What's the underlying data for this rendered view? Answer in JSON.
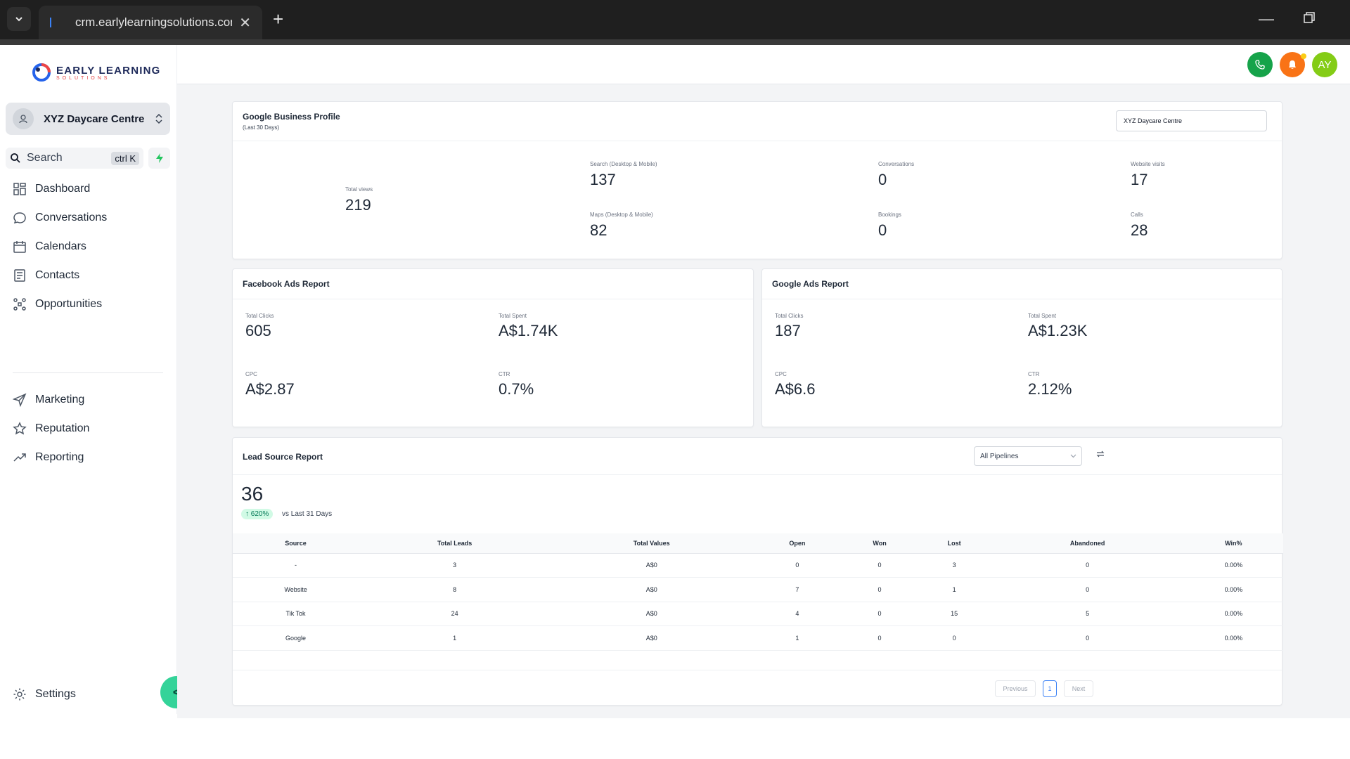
{
  "browser": {
    "tab_title": "crm.earlylearningsolutions.com",
    "close_glyph": "✕",
    "new_tab_glyph": "+",
    "minimize_glyph": "—"
  },
  "sidebar": {
    "logo_main": "EARLY LEARNING",
    "logo_sub": "SOLUTIONS",
    "location_name": "XYZ Daycare Centre",
    "search_label": "Search",
    "search_shortcut": "ctrl K",
    "nav_primary": [
      {
        "label": "Dashboard",
        "icon": "dashboard-icon"
      },
      {
        "label": "Conversations",
        "icon": "chat-bubble-icon"
      },
      {
        "label": "Calendars",
        "icon": "calendar-icon"
      },
      {
        "label": "Contacts",
        "icon": "contacts-icon"
      },
      {
        "label": "Opportunities",
        "icon": "opportunities-icon"
      }
    ],
    "nav_secondary": [
      {
        "label": "Marketing",
        "icon": "send-icon"
      },
      {
        "label": "Reputation",
        "icon": "star-icon"
      },
      {
        "label": "Reporting",
        "icon": "trend-icon"
      }
    ],
    "settings_label": "Settings",
    "collapse_glyph": "<"
  },
  "header": {
    "avatar_initials": "AY",
    "colors": {
      "phone": "#16a34a",
      "bell": "#f97316",
      "avatar": "#84cc16"
    }
  },
  "gbp": {
    "title": "Google Business Profile",
    "subtitle": "(Last 30 Days)",
    "location_select": "XYZ Daycare Centre",
    "total_views_label": "Total views",
    "total_views": "219",
    "stats": [
      {
        "label": "Search (Desktop & Mobile)",
        "value": "137"
      },
      {
        "label": "Maps (Desktop & Mobile)",
        "value": "82"
      },
      {
        "label": "Conversations",
        "value": "0"
      },
      {
        "label": "Bookings",
        "value": "0"
      },
      {
        "label": "Website visits",
        "value": "17"
      },
      {
        "label": "Calls",
        "value": "28"
      }
    ]
  },
  "facebook_ads": {
    "title": "Facebook Ads Report",
    "stats": [
      {
        "label": "Total Clicks",
        "value": "605"
      },
      {
        "label": "Total Spent",
        "value": "A$1.74K"
      },
      {
        "label": "CPC",
        "value": "A$2.87"
      },
      {
        "label": "CTR",
        "value": "0.7%"
      }
    ]
  },
  "google_ads": {
    "title": "Google Ads Report",
    "stats": [
      {
        "label": "Total Clicks",
        "value": "187"
      },
      {
        "label": "Total Spent",
        "value": "A$1.23K"
      },
      {
        "label": "CPC",
        "value": "A$6.6"
      },
      {
        "label": "CTR",
        "value": "2.12%"
      }
    ]
  },
  "lead_source": {
    "title": "Lead Source Report",
    "pipeline_select": "All Pipelines",
    "total": "36",
    "change_badge": "↑ 620%",
    "vs_text": "vs Last 31 Days",
    "columns": [
      "Source",
      "Total Leads",
      "Total Values",
      "Open",
      "Won",
      "Lost",
      "Abandoned",
      "Win%"
    ],
    "rows": [
      [
        "-",
        "3",
        "A$0",
        "0",
        "0",
        "3",
        "0",
        "0.00%"
      ],
      [
        "Website",
        "8",
        "A$0",
        "7",
        "0",
        "1",
        "0",
        "0.00%"
      ],
      [
        "Tik Tok",
        "24",
        "A$0",
        "4",
        "0",
        "15",
        "5",
        "0.00%"
      ],
      [
        "Google",
        "1",
        "A$0",
        "1",
        "0",
        "0",
        "0",
        "0.00%"
      ]
    ],
    "pager": {
      "previous": "Previous",
      "page": "1",
      "next": "Next"
    }
  }
}
